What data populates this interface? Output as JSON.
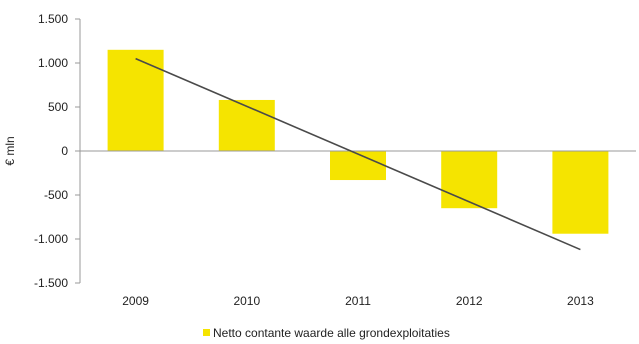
{
  "chart_data": {
    "type": "bar",
    "categories": [
      "2009",
      "2010",
      "2011",
      "2012",
      "2013"
    ],
    "series": [
      {
        "name": "Netto contante waarde alle grondexploitaties",
        "values": [
          1150,
          580,
          -330,
          -650,
          -940
        ]
      }
    ],
    "trendline": {
      "start": 1050,
      "end": -1120
    },
    "ylabel": "€ mln",
    "ylim": [
      -1500,
      1500
    ],
    "yticks": [
      1500,
      1000,
      500,
      0,
      -500,
      -1000,
      -1500
    ],
    "ytick_labels": [
      "1.500",
      "1.000",
      "500",
      "0",
      "-500",
      "-1.000",
      "-1.500"
    ],
    "grid": false,
    "legend_position": "bottom-center",
    "colors": {
      "bar": "#f5e400",
      "trendline": "#4a4a4a",
      "axis": "#999999"
    }
  }
}
